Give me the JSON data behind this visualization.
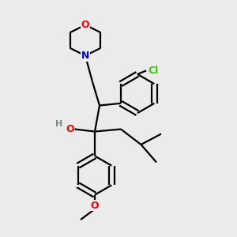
{
  "background_color": "#ebebeb",
  "bond_color": "#000000",
  "O_color": "#ff0000",
  "N_color": "#0000cc",
  "Cl_color": "#33cc00",
  "H_color": "#778888",
  "figsize": [
    3.0,
    3.0
  ],
  "dpi": 100,
  "xlim": [
    0,
    10
  ],
  "ylim": [
    0,
    10
  ]
}
